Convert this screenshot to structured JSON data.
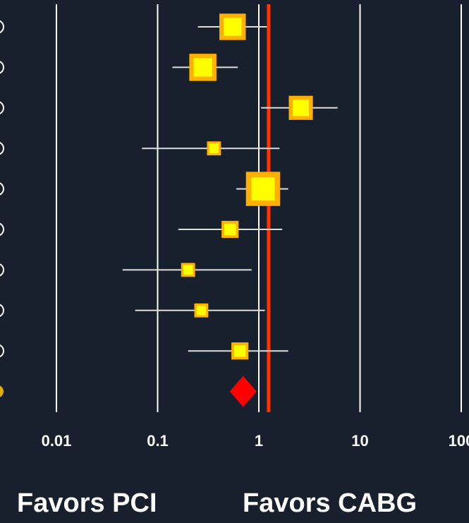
{
  "colors": {
    "background": "#17202c",
    "gridline": "#ffffff",
    "reference_line": "#ff3300",
    "study_marker_fill": "#ffff00",
    "study_marker_border": "#ffb000",
    "ci_line": "#dddddd",
    "summary_diamond": "#ff0000",
    "left_marker": "#e0b000"
  },
  "chart_data": {
    "type": "forest",
    "x_scale": "log",
    "xlim": [
      0.01,
      100
    ],
    "x_ticks": [
      0.01,
      0.1,
      1,
      10,
      100
    ],
    "x_tick_labels": [
      "0.01",
      "0.1",
      "1",
      "10",
      "100"
    ],
    "reference_line_x": 1.25,
    "grid": true,
    "studies": [
      {
        "estimate": 0.55,
        "ci_low": 0.25,
        "ci_high": 1.2,
        "weight": 1.7
      },
      {
        "estimate": 0.28,
        "ci_low": 0.14,
        "ci_high": 0.62,
        "weight": 1.75
      },
      {
        "estimate": 2.6,
        "ci_low": 1.05,
        "ci_high": 6.0,
        "weight": 1.55
      },
      {
        "estimate": 0.36,
        "ci_low": 0.07,
        "ci_high": 1.6,
        "weight": 0.9
      },
      {
        "estimate": 1.1,
        "ci_low": 0.6,
        "ci_high": 1.95,
        "weight": 2.2
      },
      {
        "estimate": 0.52,
        "ci_low": 0.16,
        "ci_high": 1.7,
        "weight": 1.1
      },
      {
        "estimate": 0.2,
        "ci_low": 0.045,
        "ci_high": 0.85,
        "weight": 0.9
      },
      {
        "estimate": 0.27,
        "ci_low": 0.06,
        "ci_high": 1.15,
        "weight": 0.9
      },
      {
        "estimate": 0.65,
        "ci_low": 0.2,
        "ci_high": 1.95,
        "weight": 1.1
      }
    ],
    "summary": {
      "estimate": 0.7
    },
    "annotations": {
      "left": "Favors PCI",
      "right": "Favors CABG"
    }
  }
}
